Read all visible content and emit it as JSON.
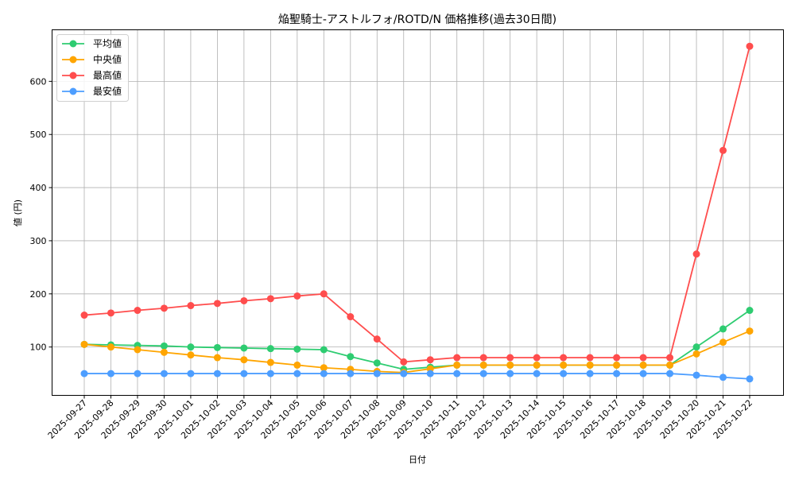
{
  "chart_data": {
    "type": "line",
    "title": "焔聖騎士-アストルフォ/ROTD/N 価格推移(過去30日間)",
    "xlabel": "日付",
    "ylabel": "値 (円)",
    "ylim": [
      9,
      697
    ],
    "yticks": [
      100,
      200,
      300,
      400,
      500,
      600
    ],
    "grid": true,
    "legend_position": "upper left",
    "categories": [
      "2025-09-27",
      "2025-09-28",
      "2025-09-29",
      "2025-09-30",
      "2025-10-01",
      "2025-10-02",
      "2025-10-03",
      "2025-10-04",
      "2025-10-05",
      "2025-10-06",
      "2025-10-07",
      "2025-10-08",
      "2025-10-09",
      "2025-10-10",
      "2025-10-11",
      "2025-10-12",
      "2025-10-13",
      "2025-10-14",
      "2025-10-15",
      "2025-10-16",
      "2025-10-17",
      "2025-10-18",
      "2025-10-19",
      "2025-10-20",
      "2025-10-21",
      "2025-10-22"
    ],
    "series": [
      {
        "name": "平均値",
        "color": "#2ecc71",
        "values": [
          105,
          104,
          103,
          102,
          100,
          99,
          98,
          97,
          96,
          95,
          82,
          70,
          58,
          62,
          66,
          66,
          66,
          66,
          66,
          66,
          66,
          66,
          66,
          100,
          134,
          169
        ]
      },
      {
        "name": "中央値",
        "color": "#ffa500",
        "values": [
          105,
          100,
          95,
          90,
          85,
          80,
          76,
          71,
          66,
          61,
          58,
          54,
          52,
          59,
          66,
          66,
          66,
          66,
          66,
          66,
          66,
          66,
          66,
          87,
          109,
          130
        ]
      },
      {
        "name": "最高値",
        "color": "#ff4d4d",
        "values": [
          160,
          164,
          169,
          173,
          178,
          182,
          187,
          191,
          196,
          200,
          157,
          115,
          72,
          76,
          80,
          80,
          80,
          80,
          80,
          80,
          80,
          80,
          80,
          275,
          470,
          666
        ]
      },
      {
        "name": "最安値",
        "color": "#4d9eff",
        "values": [
          50,
          50,
          50,
          50,
          50,
          50,
          50,
          50,
          50,
          50,
          50,
          50,
          50,
          50,
          50,
          50,
          50,
          50,
          50,
          50,
          50,
          50,
          50,
          47,
          43,
          40
        ]
      }
    ]
  }
}
